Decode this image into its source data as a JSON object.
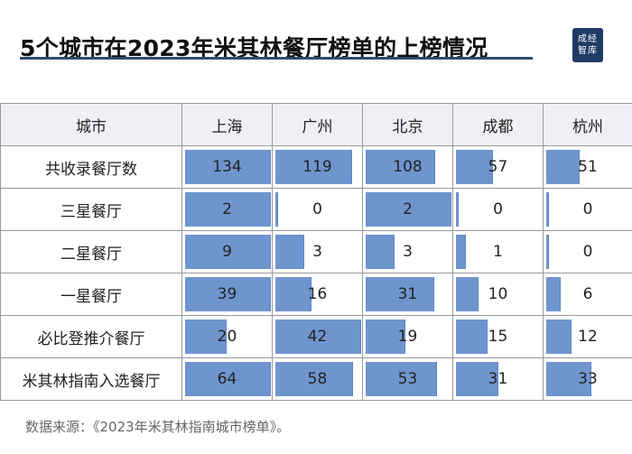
{
  "title": "5个城市在2023年米其林餐厅榜单的上榜情况",
  "logo": {
    "line1": "成经",
    "line2": "智库"
  },
  "source": "数据来源：《2023年米其林指南城市榜单》。",
  "colors": {
    "bar": "#6f95cf",
    "header_bg": "#eef0f4",
    "title_underline": "#2f4a70"
  },
  "chart_data": {
    "type": "table",
    "corner": "城市",
    "columns": [
      "上海",
      "广州",
      "北京",
      "成都",
      "杭州"
    ],
    "rows": [
      {
        "label": "共收录餐厅数",
        "values": [
          134,
          119,
          108,
          57,
          51
        ]
      },
      {
        "label": "三星餐厅",
        "values": [
          2,
          0,
          2,
          0,
          0
        ]
      },
      {
        "label": "二星餐厅",
        "values": [
          9,
          3,
          3,
          1,
          0
        ]
      },
      {
        "label": "一星餐厅",
        "values": [
          39,
          16,
          31,
          10,
          6
        ]
      },
      {
        "label": "必比登推介餐厅",
        "values": [
          20,
          42,
          19,
          15,
          12
        ]
      },
      {
        "label": "米其林指南入选餐厅",
        "values": [
          64,
          58,
          53,
          31,
          33
        ]
      }
    ]
  }
}
